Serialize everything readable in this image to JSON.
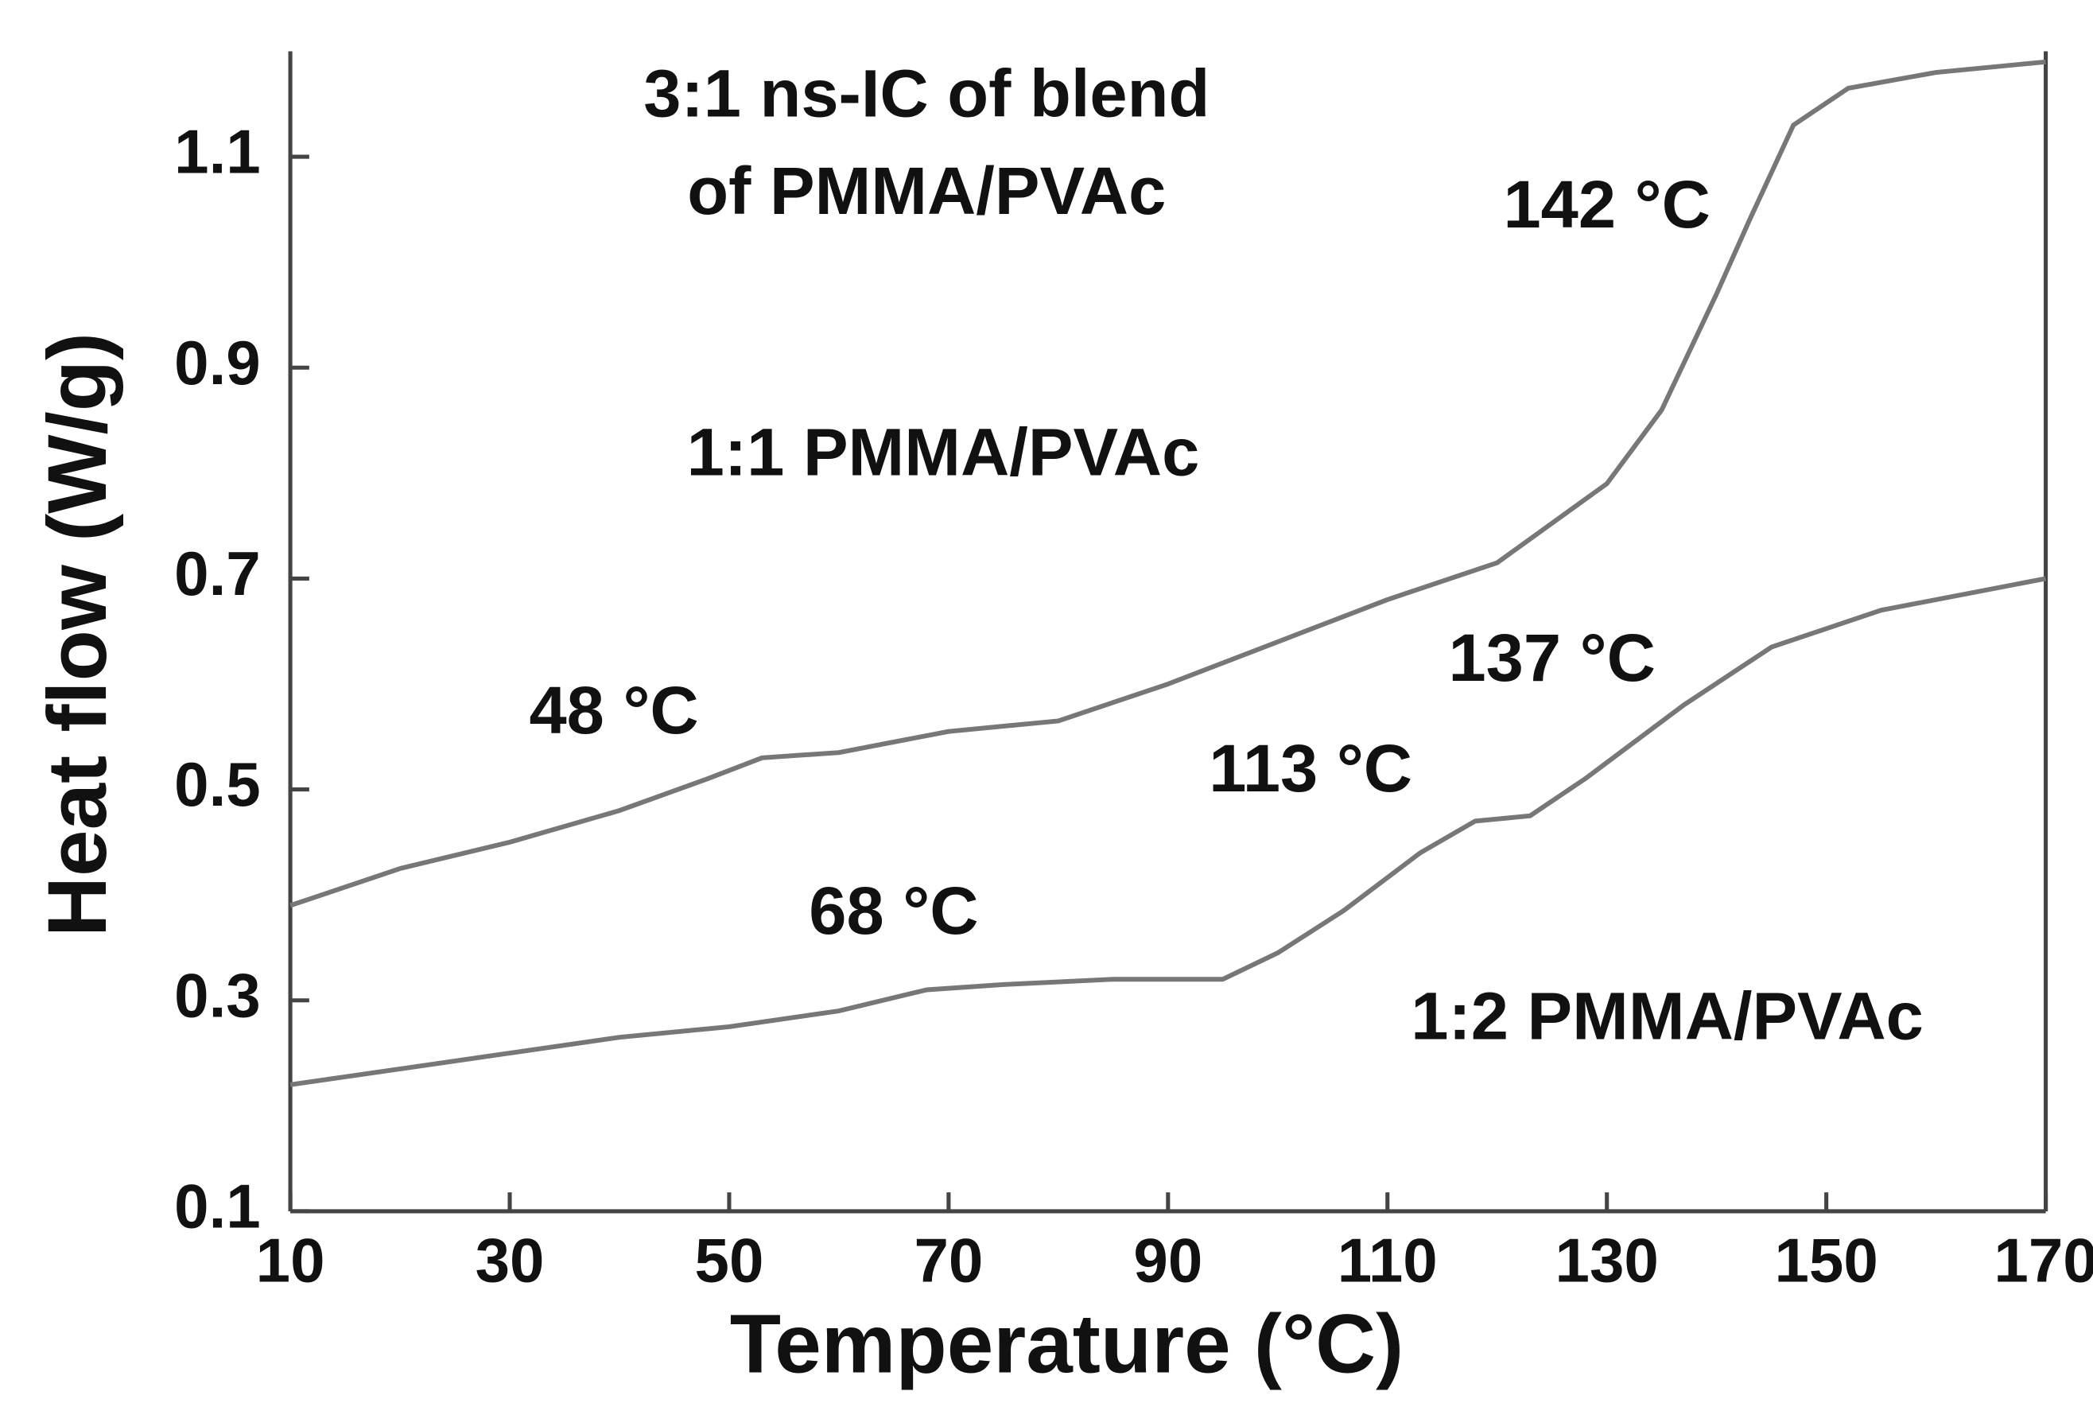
{
  "chart_data": {
    "type": "line",
    "x_label": "Temperature (°C)",
    "y_label": "Heat flow (W/g)",
    "xlim": [
      10,
      170
    ],
    "ylim": [
      0.1,
      1.2
    ],
    "xticks": [
      10,
      30,
      50,
      70,
      90,
      110,
      130,
      150,
      170
    ],
    "yticks": [
      0.1,
      0.3,
      0.5,
      0.7,
      0.9,
      1.1
    ],
    "grid": false,
    "series": [
      {
        "color": "#777777",
        "x": [
          10,
          20,
          30,
          40,
          48,
          53,
          60,
          70,
          80,
          90,
          100,
          110,
          120,
          130,
          135,
          140,
          143,
          147,
          152,
          160,
          170
        ],
        "values": [
          0.39,
          0.425,
          0.45,
          0.48,
          0.51,
          0.53,
          0.535,
          0.555,
          0.565,
          0.6,
          0.64,
          0.68,
          0.715,
          0.79,
          0.86,
          0.97,
          1.04,
          1.13,
          1.165,
          1.18,
          1.19
        ]
      },
      {
        "color": "#777777",
        "x": [
          10,
          20,
          30,
          40,
          50,
          60,
          68,
          75,
          85,
          95,
          100,
          106,
          113,
          118,
          123,
          128,
          137,
          145,
          155,
          170
        ],
        "values": [
          0.22,
          0.235,
          0.25,
          0.265,
          0.275,
          0.29,
          0.31,
          0.315,
          0.32,
          0.32,
          0.345,
          0.385,
          0.44,
          0.47,
          0.475,
          0.51,
          0.58,
          0.635,
          0.67,
          0.7
        ]
      }
    ],
    "annotations": [
      {
        "lines": [
          "3:1 ns-IC of blend",
          "of PMMA/PVAc"
        ],
        "x": 68,
        "y": 1.155
      },
      {
        "lines": [
          "1:1 PMMA/PVAc"
        ],
        "x": 69.5,
        "y": 0.815
      },
      {
        "lines": [
          "1:2 PMMA/PVAc"
        ],
        "x": 135.5,
        "y": 0.28
      },
      {
        "lines": [
          "142 °C"
        ],
        "x": 130,
        "y": 1.05
      },
      {
        "lines": [
          "48 °C"
        ],
        "x": 39.5,
        "y": 0.57
      },
      {
        "lines": [
          "68 °C"
        ],
        "x": 65,
        "y": 0.38
      },
      {
        "lines": [
          "113 °C"
        ],
        "x": 103,
        "y": 0.515
      },
      {
        "lines": [
          "137 °C"
        ],
        "x": 125,
        "y": 0.62
      }
    ]
  }
}
